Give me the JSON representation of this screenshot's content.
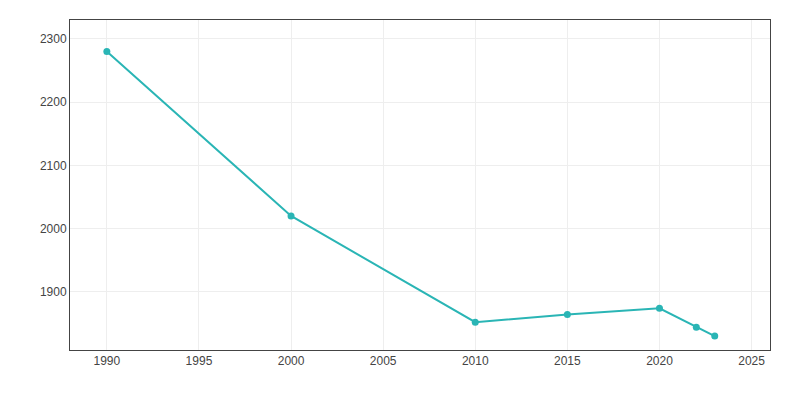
{
  "chart_data": {
    "type": "line",
    "x": [
      1990,
      2000,
      2010,
      2015,
      2020,
      2022,
      2023
    ],
    "values": [
      2280,
      2020,
      1852,
      1864,
      1874,
      1844,
      1830
    ],
    "color": "#2ab5b5",
    "marker": "circle",
    "xlim": [
      1988,
      2026
    ],
    "xticks": [
      1990,
      1995,
      2000,
      2005,
      2010,
      2015,
      2020,
      2025
    ],
    "ylim": [
      1808,
      2330
    ],
    "yticks": [
      1900,
      2000,
      2100,
      2200,
      2300
    ],
    "grid": true
  }
}
